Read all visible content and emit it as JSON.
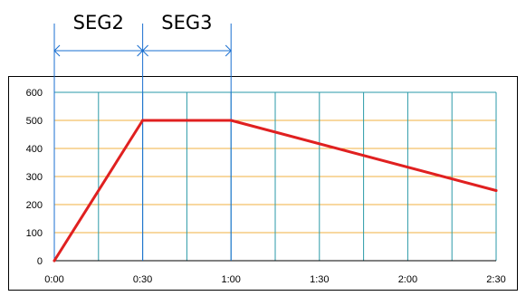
{
  "chart_data": {
    "type": "line",
    "title": "",
    "xlabel": "",
    "ylabel": "",
    "x_ticks": [
      "0:00",
      "0:30",
      "1:00",
      "1:30",
      "2:00",
      "2:30"
    ],
    "y_ticks": [
      "0",
      "100",
      "200",
      "300",
      "400",
      "500",
      "600"
    ],
    "xlim": [
      0,
      150
    ],
    "ylim": [
      0,
      600
    ],
    "x_unit": "minutes",
    "grid": true,
    "series": [
      {
        "x": [
          0,
          30,
          60,
          150
        ],
        "y": [
          0,
          500,
          500,
          250
        ],
        "color": "#e02020"
      }
    ],
    "segments": [
      {
        "label": "SEG2",
        "start": 0,
        "end": 30
      },
      {
        "label": "SEG3",
        "start": 30,
        "end": 60
      }
    ],
    "colors": {
      "line": "#e02020",
      "vertical_grid": "#2a9aa8",
      "horizontal_grid": "#f0b040",
      "segment_markers": "#1a6fd0",
      "frame": "#000000"
    }
  }
}
